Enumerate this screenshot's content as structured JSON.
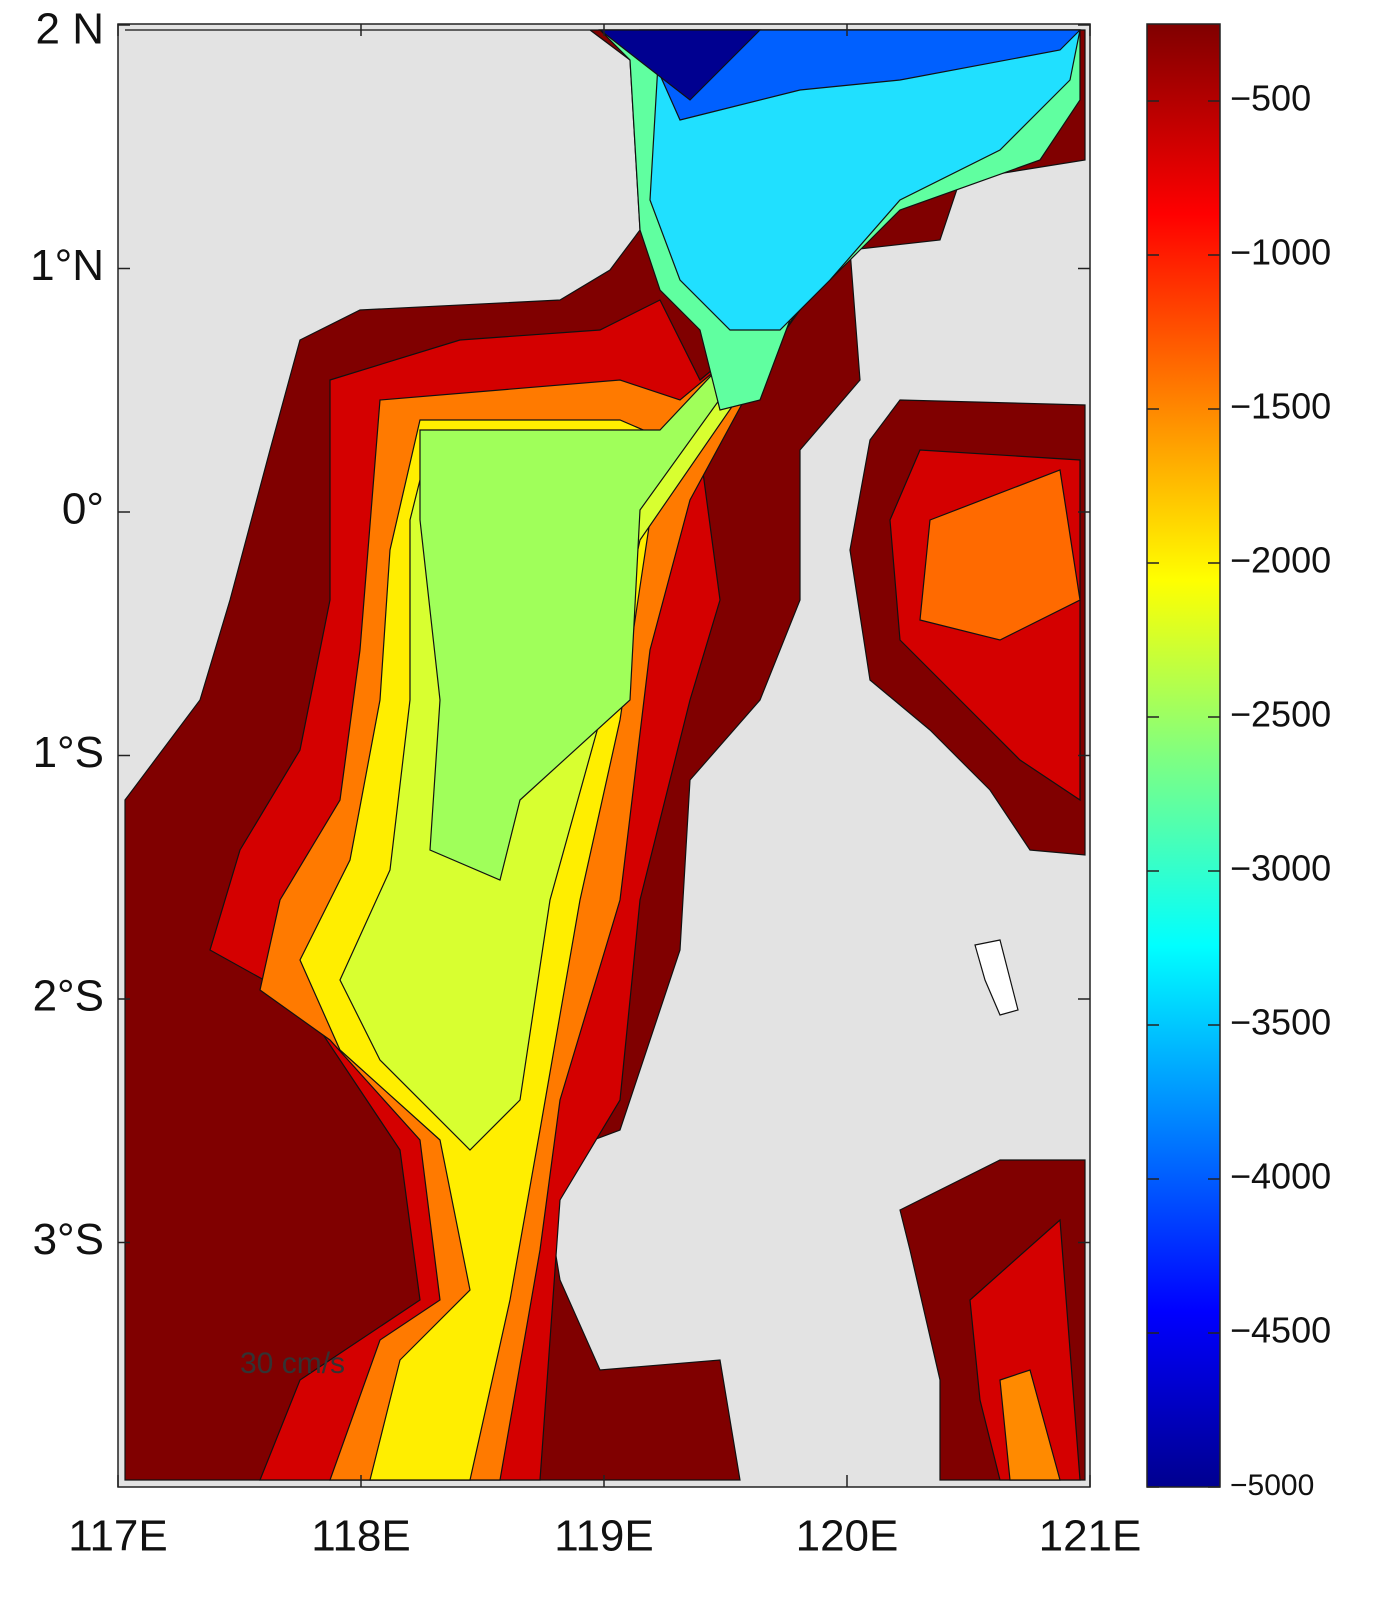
{
  "map": {
    "xticks": [
      {
        "value": 117,
        "label": "117E"
      },
      {
        "value": 118,
        "label": "118E"
      },
      {
        "value": 119,
        "label": "119E"
      },
      {
        "value": 120,
        "label": "120E"
      },
      {
        "value": 121,
        "label": "121E"
      }
    ],
    "yticks": [
      {
        "value": 2,
        "label": "2 N"
      },
      {
        "value": 1,
        "label": "1°N"
      },
      {
        "value": 0,
        "label": "0°"
      },
      {
        "value": -1,
        "label": "1°S"
      },
      {
        "value": -2,
        "label": "2°S"
      },
      {
        "value": -3,
        "label": "3°S"
      }
    ],
    "annotation": "30 cm/s",
    "colorbar": {
      "ylim": [
        -5000,
        -250
      ],
      "yticks": [
        {
          "value": -500,
          "label": "−500"
        },
        {
          "value": -1000,
          "label": "−1000"
        },
        {
          "value": -1500,
          "label": "−1500"
        },
        {
          "value": -2000,
          "label": "−2000"
        },
        {
          "value": -2500,
          "label": "−2500"
        },
        {
          "value": -3000,
          "label": "−3000"
        },
        {
          "value": -3500,
          "label": "−3500"
        },
        {
          "value": -4000,
          "label": "−4000"
        },
        {
          "value": -4500,
          "label": "−4500"
        },
        {
          "value": -5000,
          "label": "−5000"
        }
      ]
    }
  }
}
